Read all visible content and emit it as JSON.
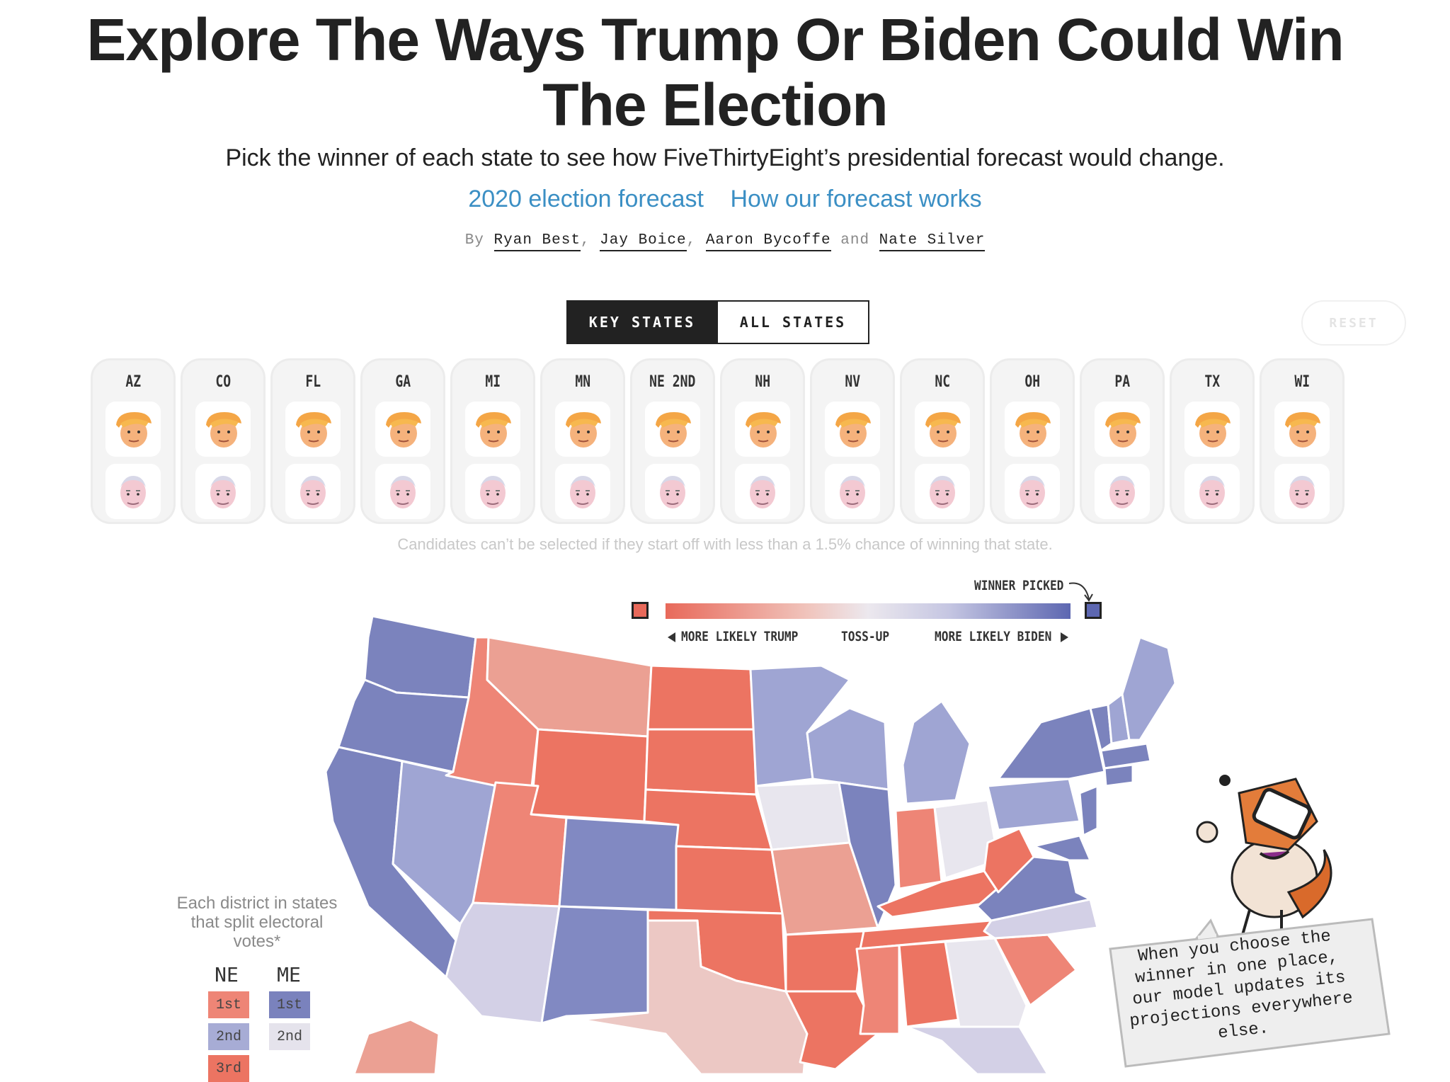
{
  "header": {
    "title_line1": "Explore The Ways Trump Or Biden Could Win",
    "title_line2": "The Election",
    "subtitle": "Pick the winner of each state to see how FiveThirtyEight’s presidential forecast would change.",
    "links": [
      "2020 election forecast",
      "How our forecast works"
    ],
    "byline": {
      "prefix": "By",
      "authors": [
        "Ryan Best",
        "Jay Boice",
        "Aaron Bycoffe",
        "Nate Silver"
      ],
      "sep1": ",",
      "sep2": ",",
      "and": "and"
    }
  },
  "tabs": {
    "key_states": "KEY STATES",
    "all_states": "ALL STATES",
    "active": "KEY STATES"
  },
  "reset_label": "RESET",
  "states": [
    "AZ",
    "CO",
    "FL",
    "GA",
    "MI",
    "MN",
    "NE 2ND",
    "NH",
    "NV",
    "NC",
    "OH",
    "PA",
    "TX",
    "WI"
  ],
  "candidate_icons": [
    "trump-face-icon",
    "biden-face-icon"
  ],
  "note": "Candidates can’t be selected if they start off with less than a 1.5% chance of winning that state.",
  "legend": {
    "winner_picked": "WINNER PICKED",
    "more_likely_trump": "MORE LIKELY TRUMP",
    "toss_up": "TOSS-UP",
    "more_likely_biden": "MORE LIKELY BIDEN",
    "trump_color": "#e8695a",
    "biden_color": "#5d67b1"
  },
  "split_votes": {
    "caption": "Each district in states that split electoral votes*",
    "ne": {
      "label": "NE",
      "districts": [
        {
          "name": "1st",
          "color": "#ee8576"
        },
        {
          "name": "2nd",
          "color": "#a7acd5"
        },
        {
          "name": "3rd",
          "color": "#ec7462"
        }
      ]
    },
    "me": {
      "label": "ME",
      "districts": [
        {
          "name": "1st",
          "color": "#7a82bd"
        },
        {
          "name": "2nd",
          "color": "#e5e3ec"
        }
      ]
    }
  },
  "speech_bubble": "When you choose the winner in one place, our model updates its projections everywhere else.",
  "map": {
    "region": "United States",
    "palette": {
      "strong_trump": "#ec7462",
      "trump": "#ee8576",
      "lean_trump": "#eba093",
      "tilt_trump": "#ecc8c4",
      "toss": "#e8e6ee",
      "tilt_biden": "#d3d0e6",
      "lean_biden": "#9fa5d3",
      "biden": "#8189c2",
      "strong_biden": "#7b83bd"
    }
  }
}
